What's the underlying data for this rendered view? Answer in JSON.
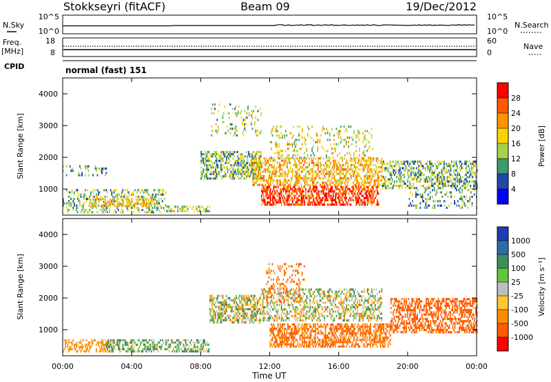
{
  "header": {
    "station": "Stokkseyri (fitACF)",
    "beam": "Beam 09",
    "date": "19/Dec/2012"
  },
  "noise_panel": {
    "left_label": "N.Sky",
    "left_ticks": [
      "10^5",
      "10^0"
    ],
    "right_ticks": [
      "10^5",
      "10^0"
    ],
    "right_label": "N.Search"
  },
  "freq_panel": {
    "label_line1": "Freq.",
    "label_line2": "[MHz]",
    "left_ticks": [
      "18",
      "8"
    ],
    "right_ticks": [
      "60",
      "0"
    ],
    "right_label": "Nave"
  },
  "cpid": {
    "label": "CPID",
    "value": "normal (fast) 151"
  },
  "axes": {
    "x_label": "Time UT",
    "x_ticks": [
      "00:00",
      "04:00",
      "08:00",
      "12:00",
      "16:00",
      "20:00",
      "00:00"
    ],
    "y_label": "Slant Range [km]",
    "y_ticks": [
      "4000",
      "3000",
      "2000",
      "1000"
    ]
  },
  "colorbars": {
    "power": {
      "label": "Power [dB]",
      "ticks": [
        "28",
        "24",
        "20",
        "16",
        "12",
        "8",
        "4"
      ],
      "colors": [
        "#ff0000",
        "#ff5a00",
        "#ff9600",
        "#ffd000",
        "#a8d24a",
        "#3e9a6a",
        "#1e4aa8",
        "#0000ff"
      ]
    },
    "velocity": {
      "label": "Velocity [m s⁻¹]",
      "ticks": [
        "1000",
        "500",
        "100",
        "25",
        "-25",
        "-100",
        "-500",
        "-1000"
      ],
      "colors": [
        "#1e3cb4",
        "#2a6ea6",
        "#3c8f5a",
        "#5ec83c",
        "#bebebe",
        "#ffc832",
        "#ff8c00",
        "#ff5a00",
        "#ff0000"
      ]
    }
  },
  "chart_data": [
    {
      "type": "heatmap",
      "title": "Power [dB]",
      "xlabel": "Time UT",
      "ylabel": "Slant Range [km]",
      "xlim": [
        0,
        24
      ],
      "ylim": [
        180,
        4500
      ],
      "zlim": [
        0,
        30
      ],
      "blobs": [
        {
          "t0": 0.0,
          "t1": 2.5,
          "r0": 1450,
          "r1": 1750,
          "density": 0.22,
          "z": 6
        },
        {
          "t0": 0.0,
          "t1": 6.0,
          "r0": 250,
          "r1": 1000,
          "density": 0.35,
          "z": 9
        },
        {
          "t0": 1.5,
          "t1": 5.5,
          "r0": 450,
          "r1": 700,
          "density": 0.5,
          "z": 15
        },
        {
          "t0": 6.0,
          "t1": 8.5,
          "r0": 280,
          "r1": 480,
          "density": 0.45,
          "z": 11
        },
        {
          "t0": 8.6,
          "t1": 11.5,
          "r0": 2700,
          "r1": 3700,
          "density": 0.16,
          "z": 10
        },
        {
          "t0": 8.0,
          "t1": 11.5,
          "r0": 1300,
          "r1": 2200,
          "density": 0.5,
          "z": 8
        },
        {
          "t0": 11.0,
          "t1": 18.5,
          "r0": 1100,
          "r1": 2000,
          "density": 0.5,
          "z": 16
        },
        {
          "t0": 11.5,
          "t1": 18.3,
          "r0": 500,
          "r1": 1100,
          "density": 0.6,
          "z": 24
        },
        {
          "t0": 12.0,
          "t1": 18.0,
          "r0": 2000,
          "r1": 3000,
          "density": 0.18,
          "z": 12
        },
        {
          "t0": 18.5,
          "t1": 24.0,
          "r0": 1000,
          "r1": 1900,
          "density": 0.45,
          "z": 8
        },
        {
          "t0": 20.0,
          "t1": 24.0,
          "r0": 400,
          "r1": 1000,
          "density": 0.2,
          "z": 6
        }
      ]
    },
    {
      "type": "heatmap",
      "title": "Velocity [m s⁻¹]",
      "xlabel": "Time UT",
      "ylabel": "Slant Range [km]",
      "xlim": [
        0,
        24
      ],
      "ylim": [
        180,
        4500
      ],
      "zlim": [
        -1000,
        1000
      ],
      "blobs": [
        {
          "t0": 0.0,
          "t1": 3.0,
          "r0": 350,
          "r1": 700,
          "density": 0.45,
          "z": -150
        },
        {
          "t0": 2.5,
          "t1": 8.5,
          "r0": 350,
          "r1": 700,
          "density": 0.5,
          "z": 60
        },
        {
          "t0": 8.5,
          "t1": 11.5,
          "r0": 1200,
          "r1": 2100,
          "density": 0.55,
          "z": 0
        },
        {
          "t0": 11.5,
          "t1": 18.5,
          "r0": 1300,
          "r1": 2300,
          "density": 0.45,
          "z": 0
        },
        {
          "t0": 12.0,
          "t1": 19.0,
          "r0": 500,
          "r1": 1200,
          "density": 0.55,
          "z": -300
        },
        {
          "t0": 19.0,
          "t1": 24.0,
          "r0": 900,
          "r1": 2000,
          "density": 0.5,
          "z": -400
        },
        {
          "t0": 11.8,
          "t1": 14.0,
          "r0": 1900,
          "r1": 3100,
          "density": 0.2,
          "z": -300
        }
      ]
    }
  ]
}
